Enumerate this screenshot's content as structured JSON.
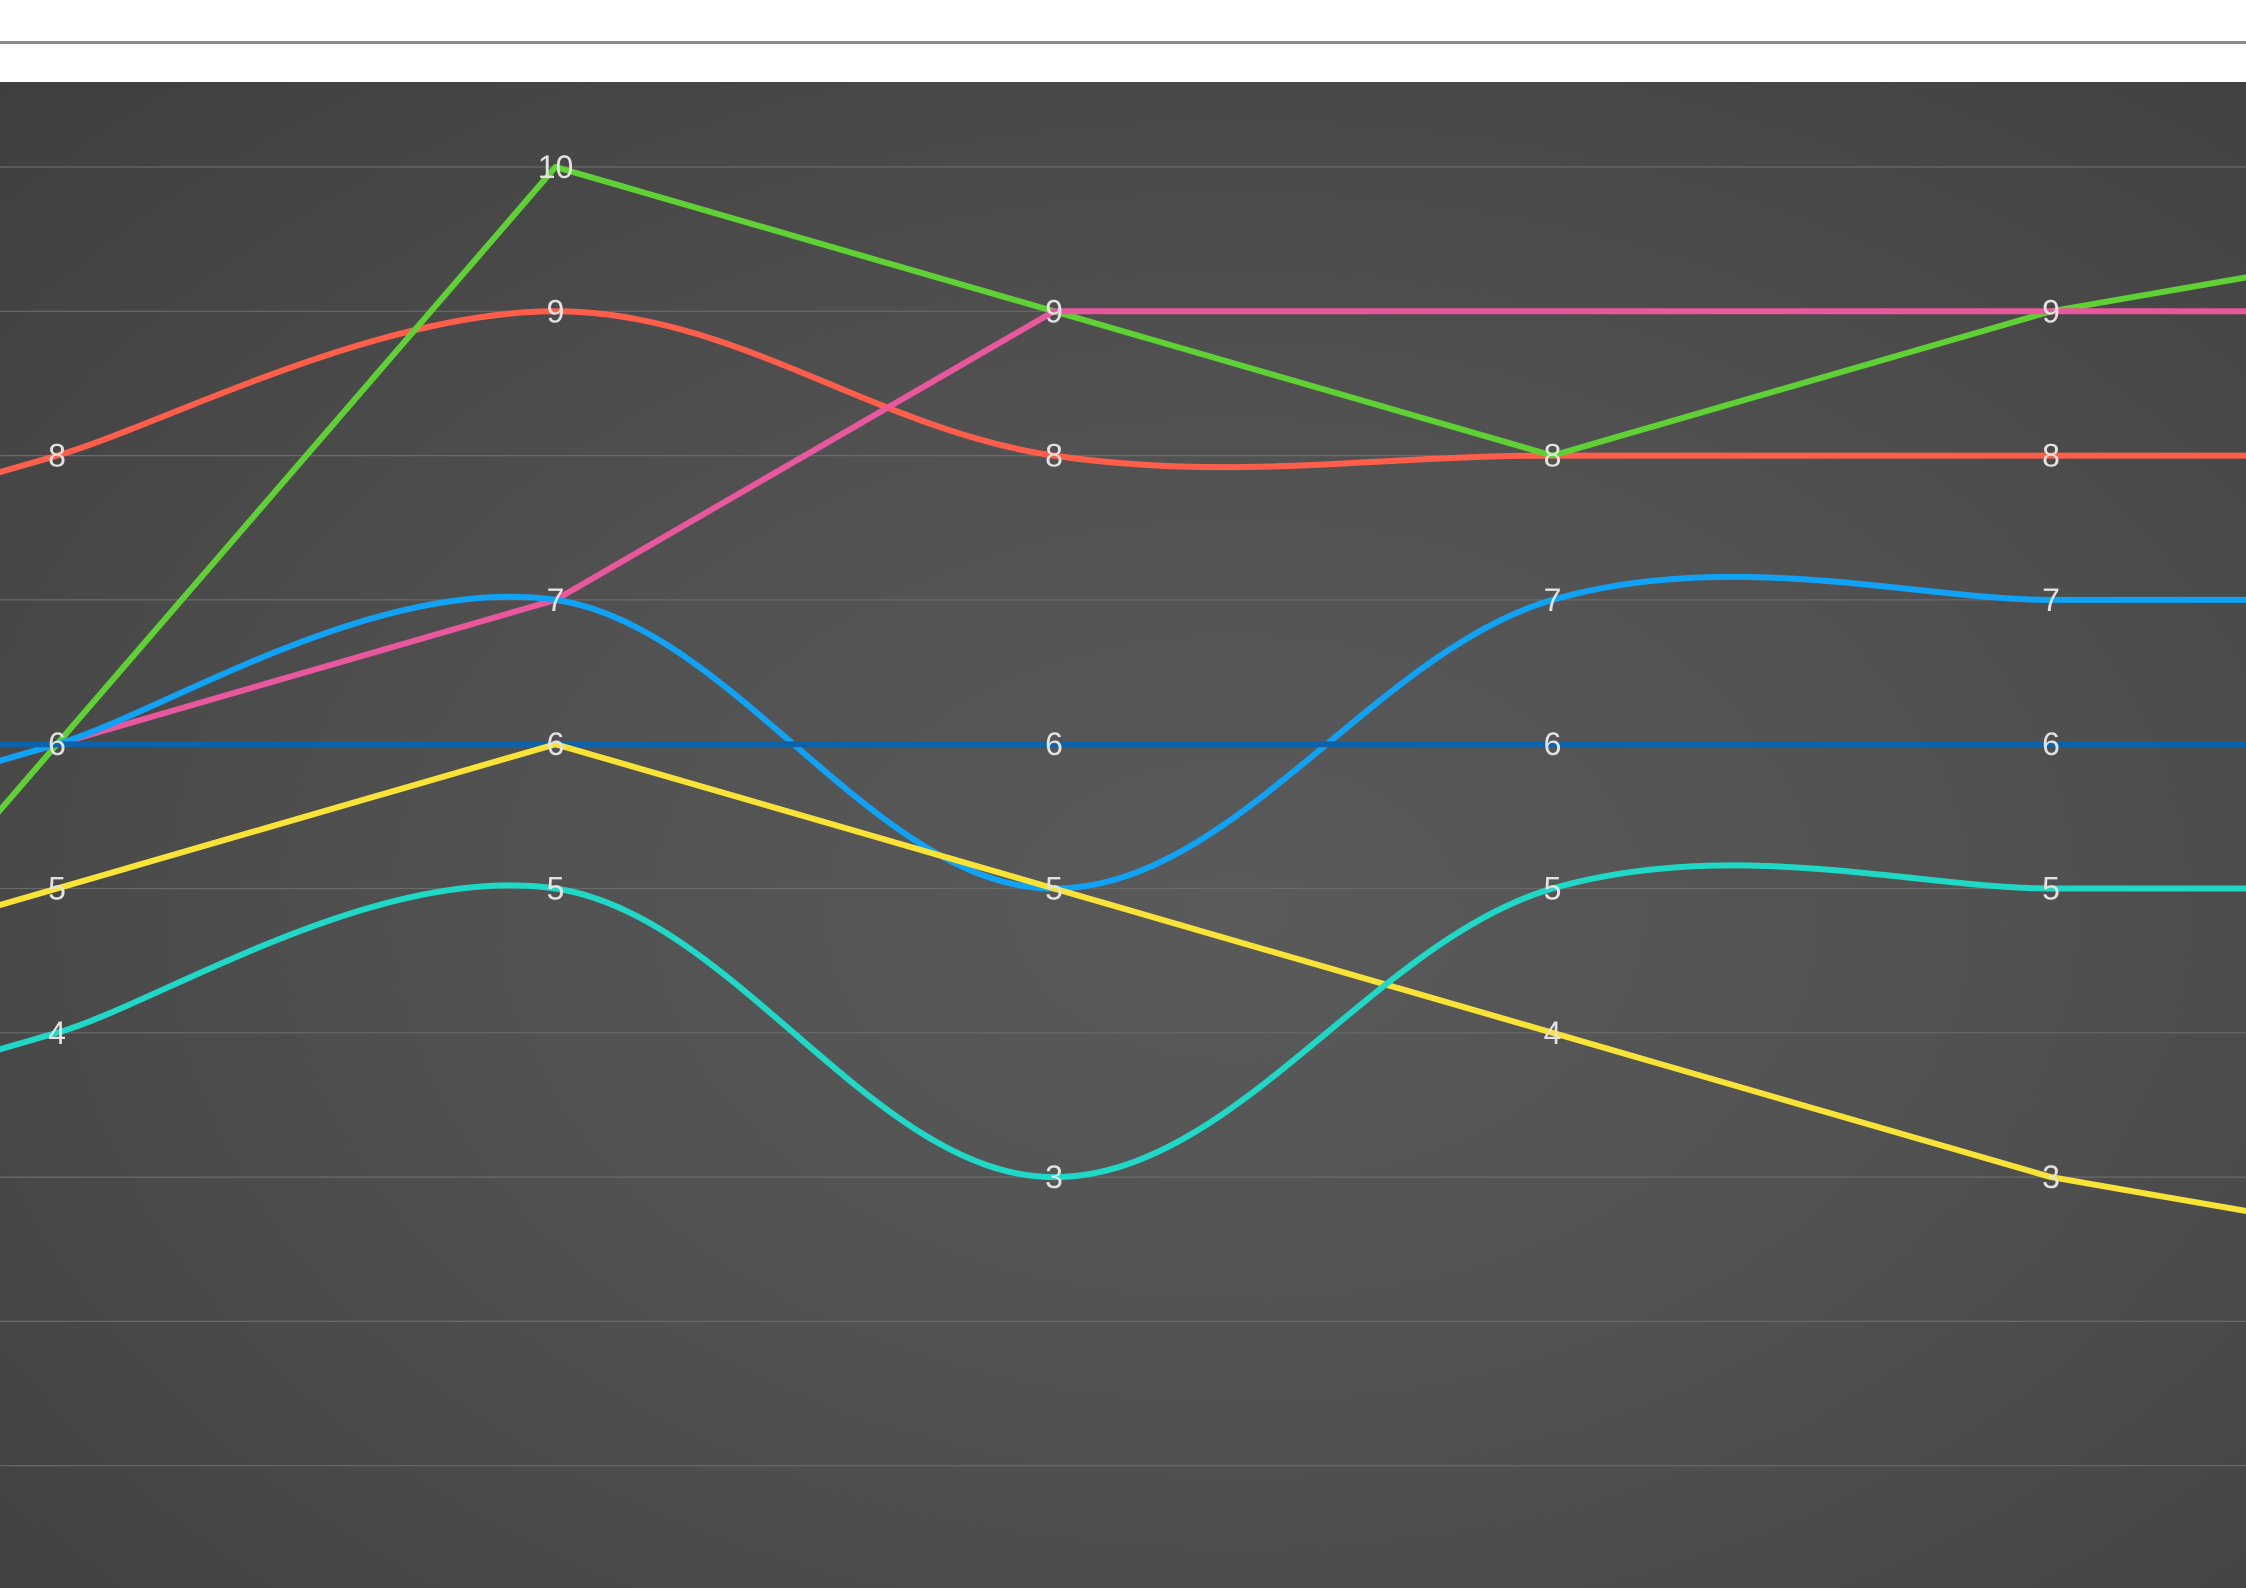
{
  "chart_data": {
    "type": "line",
    "categories": [
      "",
      "",
      "",
      "",
      ""
    ],
    "ylim": [
      0,
      10.6
    ],
    "grid": true,
    "legend": "none",
    "series": [
      {
        "values": [
          8,
          9,
          8,
          8,
          8
        ],
        "color": "#ff5f4a",
        "smooth": true,
        "show_labels": [
          true,
          true,
          true,
          false,
          true
        ]
      },
      {
        "values": [
          6,
          10,
          9,
          8,
          9
        ],
        "color": "#5fd135",
        "smooth": false,
        "show_labels": [
          false,
          true,
          true,
          true,
          true
        ]
      },
      {
        "values": [
          6,
          7,
          9,
          null,
          9
        ],
        "color": "#e9589d",
        "smooth": false,
        "show_labels": [
          false,
          false,
          false,
          false,
          false
        ]
      },
      {
        "values": [
          6,
          7,
          5,
          7,
          7
        ],
        "color": "#10a2f4",
        "smooth": true,
        "show_labels": [
          true,
          true,
          false,
          true,
          true
        ]
      },
      {
        "values": [
          6,
          6,
          6,
          6,
          6
        ],
        "color": "#0d63a9",
        "smooth": false,
        "show_labels": [
          false,
          true,
          true,
          true,
          true
        ]
      },
      {
        "values": [
          5,
          6,
          5,
          4,
          3
        ],
        "color": "#f8e336",
        "smooth": false,
        "show_labels": [
          true,
          false,
          true,
          true,
          true
        ]
      },
      {
        "values": [
          4,
          5,
          3,
          5,
          5
        ],
        "color": "#1fd8c5",
        "smooth": true,
        "show_labels": [
          true,
          true,
          true,
          true,
          true
        ]
      }
    ]
  }
}
